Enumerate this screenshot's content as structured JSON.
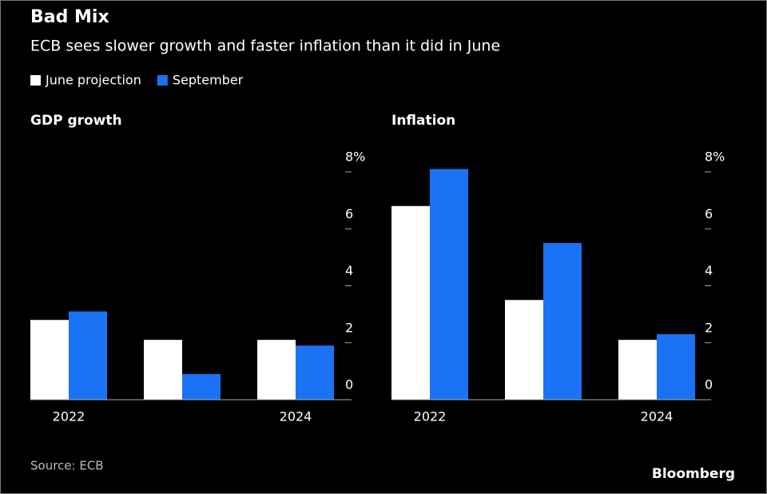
{
  "title": "Bad Mix",
  "subtitle": "ECB sees slower growth and faster inflation than it did in June",
  "source": "Source: ECB",
  "logo": "Bloomberg",
  "chart_data": [
    {
      "type": "bar",
      "title": "GDP growth",
      "categories": [
        "2022",
        null,
        "2024"
      ],
      "series": [
        {
          "name": "June projection",
          "color": "#ffffff",
          "values": [
            2.8,
            2.1,
            2.1
          ]
        },
        {
          "name": "September",
          "color": "#1a73f5",
          "values": [
            3.1,
            0.9,
            1.9
          ]
        }
      ],
      "ylim": [
        0,
        8
      ],
      "yticks": [
        0,
        2,
        4,
        6,
        {
          "value": 8,
          "label": "8%"
        }
      ]
    },
    {
      "type": "bar",
      "title": "Inflation",
      "categories": [
        "2022",
        null,
        "2024"
      ],
      "series": [
        {
          "color": "#ffffff",
          "values": [
            6.8,
            3.5,
            2.1
          ]
        },
        {
          "color": "#1a73f5",
          "values": [
            8.1,
            5.5,
            2.3
          ]
        }
      ],
      "ylim": [
        0,
        8
      ],
      "yticks": [
        0,
        2,
        4,
        6,
        {
          "value": 8,
          "label": "8%"
        }
      ]
    }
  ]
}
